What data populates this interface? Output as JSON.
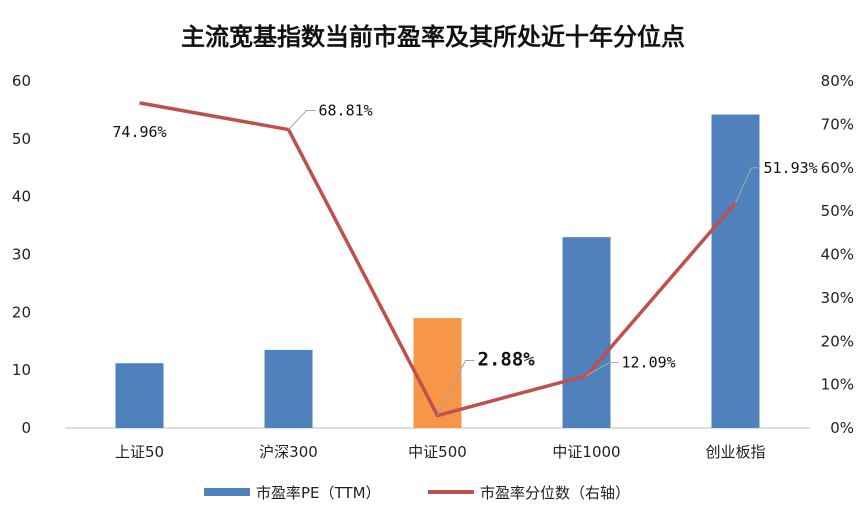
{
  "chart_data": {
    "type": "bar",
    "title": "主流宽基指数当前市盈率及其所处近十年分位点",
    "categories": [
      "上证50",
      "沪深300",
      "中证500",
      "中证1000",
      "创业板指"
    ],
    "series": [
      {
        "name": "市盈率PE（TTM）",
        "type": "bar",
        "axis": "left",
        "values": [
          11.2,
          13.5,
          19.0,
          33.0,
          54.2
        ],
        "colors": [
          "#4f81bd",
          "#4f81bd",
          "#f79646",
          "#4f81bd",
          "#4f81bd"
        ]
      },
      {
        "name": "市盈率分位数（右轴）",
        "type": "line",
        "axis": "right",
        "values": [
          74.96,
          68.81,
          2.88,
          12.09,
          51.93
        ],
        "labels": [
          "74.96%",
          "68.81%",
          "2.88%",
          "12.09%",
          "51.93%"
        ],
        "highlight_index": 2,
        "color": "#c0504d"
      }
    ],
    "y_left": {
      "ylim": [
        0,
        60
      ],
      "ticks": [
        "0",
        "10",
        "20",
        "30",
        "40",
        "50",
        "60"
      ]
    },
    "y_right": {
      "ylim": [
        0,
        80
      ],
      "ticks": [
        "0%",
        "10%",
        "20%",
        "30%",
        "40%",
        "50%",
        "60%",
        "70%",
        "80%"
      ]
    },
    "grid": false,
    "legend": "bottom"
  }
}
